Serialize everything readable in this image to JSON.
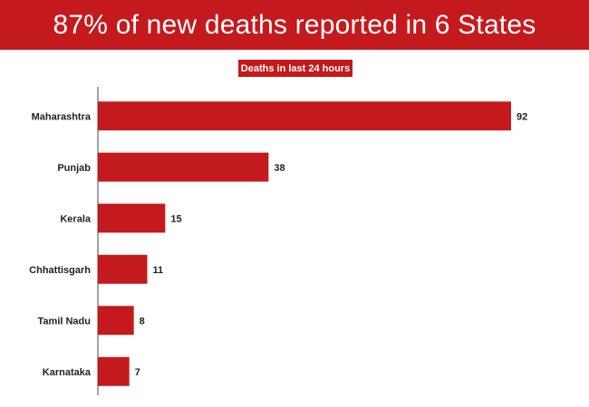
{
  "banner": {
    "title": "87% of new deaths reported in 6 States",
    "background": "#c41a1d"
  },
  "subtitle": {
    "text": "Deaths in last 24 hours",
    "background": "#c41a1d"
  },
  "chart_data": {
    "type": "bar",
    "orientation": "horizontal",
    "title": "87% of new deaths reported in 6 States",
    "subtitle": "Deaths in last 24 hours",
    "categories": [
      "Maharashtra",
      "Punjab",
      "Kerala",
      "Chhattisgarh",
      "Tamil Nadu",
      "Karnataka"
    ],
    "values": [
      92,
      38,
      15,
      11,
      8,
      7
    ],
    "bar_color": "#c41a1d",
    "xlim": [
      0,
      92
    ],
    "grid": false,
    "legend": "none"
  }
}
